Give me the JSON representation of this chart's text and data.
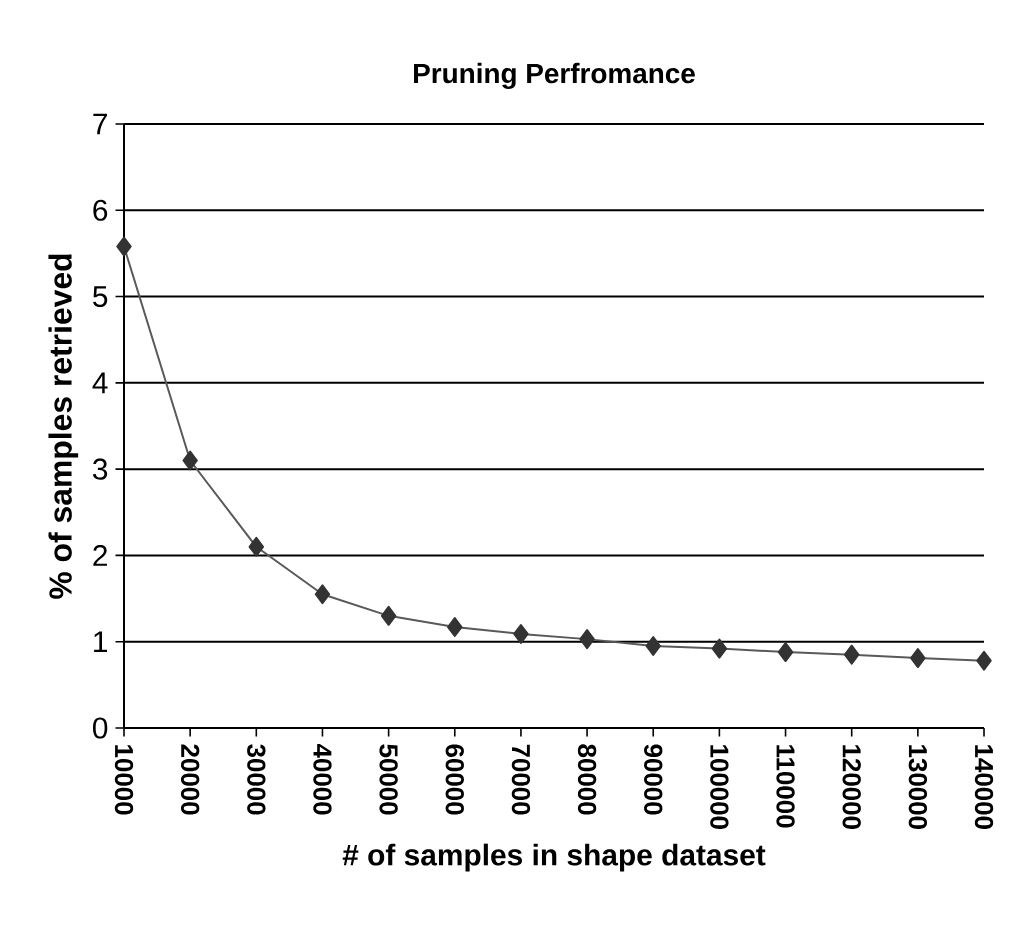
{
  "chart_data": {
    "type": "line",
    "title": "Pruning Perfromance",
    "xlabel": "# of samples in shape dataset",
    "ylabel": "% of samples retrieved",
    "categories": [
      "10000",
      "20000",
      "30000",
      "40000",
      "50000",
      "60000",
      "70000",
      "80000",
      "90000",
      "100000",
      "110000",
      "120000",
      "130000",
      "140000"
    ],
    "series": [
      {
        "color": "#333333",
        "values": [
          5.58,
          3.1,
          2.1,
          1.55,
          1.3,
          1.17,
          1.09,
          1.03,
          0.95,
          0.92,
          0.88,
          0.85,
          0.81,
          0.78
        ]
      }
    ],
    "ylim": [
      0,
      7
    ],
    "yticks": [
      0,
      1,
      2,
      3,
      4,
      5,
      6,
      7
    ],
    "grid": "y",
    "marker": "diamond",
    "line_style": "solid"
  }
}
